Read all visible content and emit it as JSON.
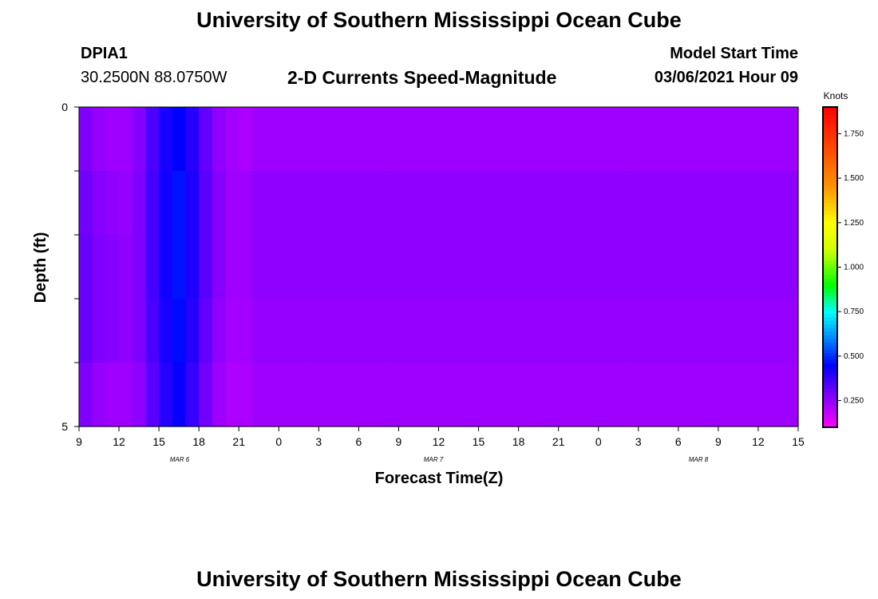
{
  "header": {
    "title": "University of Southern Mississippi Ocean Cube",
    "station": "DPIA1",
    "coords": "30.2500N 88.0750W",
    "subtitle": "2-D Currents Speed-Magnitude",
    "model_label": "Model Start Time",
    "model_time": "03/06/2021 Hour 09"
  },
  "footer": {
    "title": "University of Southern Mississippi Ocean Cube"
  },
  "chart_data": {
    "type": "heatmap",
    "title": "2-D Currents Speed-Magnitude",
    "xlabel": "Forecast Time(Z)",
    "ylabel": "Depth (ft)",
    "colorbar_label": "Knots",
    "x_tick_labels": [
      "9",
      "12",
      "15",
      "18",
      "21",
      "0",
      "3",
      "6",
      "9",
      "12",
      "15",
      "18",
      "21",
      "0",
      "3",
      "6",
      "9",
      "12",
      "15"
    ],
    "date_labels": [
      "MAR 6",
      "MAR 7",
      "MAR 8"
    ],
    "y_tick_labels": [
      "0",
      "5"
    ],
    "ylim": [
      0,
      5
    ],
    "colorbar_ticks": [
      "0.250",
      "0.500",
      "0.750",
      "1.000",
      "1.250",
      "1.500",
      "1.750"
    ],
    "colorbar_range": [
      0.1,
      1.9
    ],
    "columns_per_hour": 1,
    "depth_rows": 5,
    "values": [
      [
        0.28,
        0.25,
        0.24,
        0.24,
        0.27,
        0.35,
        0.42,
        0.45,
        0.4,
        0.32,
        0.26,
        0.23,
        0.22,
        0.24,
        0.24,
        0.24,
        0.24,
        0.24,
        0.24,
        0.24,
        0.24,
        0.24,
        0.24,
        0.24,
        0.24,
        0.24,
        0.24,
        0.24,
        0.24,
        0.24,
        0.24,
        0.24,
        0.24,
        0.24,
        0.24,
        0.24,
        0.24,
        0.24,
        0.24,
        0.24,
        0.24,
        0.24,
        0.24,
        0.24,
        0.24,
        0.24,
        0.24,
        0.24,
        0.24,
        0.24,
        0.24,
        0.24,
        0.24,
        0.24
      ],
      [
        0.3,
        0.27,
        0.26,
        0.25,
        0.28,
        0.36,
        0.43,
        0.47,
        0.41,
        0.33,
        0.27,
        0.24,
        0.24,
        0.26,
        0.26,
        0.26,
        0.26,
        0.26,
        0.26,
        0.26,
        0.26,
        0.26,
        0.26,
        0.26,
        0.26,
        0.26,
        0.26,
        0.26,
        0.26,
        0.26,
        0.26,
        0.26,
        0.26,
        0.26,
        0.26,
        0.26,
        0.26,
        0.26,
        0.26,
        0.26,
        0.26,
        0.26,
        0.26,
        0.26,
        0.26,
        0.26,
        0.26,
        0.26,
        0.26,
        0.26,
        0.26,
        0.26,
        0.26,
        0.26
      ],
      [
        0.31,
        0.28,
        0.27,
        0.26,
        0.28,
        0.36,
        0.43,
        0.47,
        0.41,
        0.33,
        0.27,
        0.24,
        0.24,
        0.26,
        0.26,
        0.26,
        0.26,
        0.26,
        0.26,
        0.26,
        0.26,
        0.26,
        0.26,
        0.26,
        0.26,
        0.26,
        0.26,
        0.26,
        0.26,
        0.26,
        0.26,
        0.26,
        0.26,
        0.26,
        0.26,
        0.26,
        0.26,
        0.26,
        0.26,
        0.26,
        0.26,
        0.26,
        0.26,
        0.26,
        0.26,
        0.26,
        0.26,
        0.26,
        0.26,
        0.26,
        0.26,
        0.26,
        0.26,
        0.26
      ],
      [
        0.31,
        0.28,
        0.27,
        0.26,
        0.28,
        0.35,
        0.42,
        0.46,
        0.4,
        0.32,
        0.26,
        0.23,
        0.23,
        0.25,
        0.25,
        0.25,
        0.25,
        0.25,
        0.25,
        0.25,
        0.25,
        0.25,
        0.25,
        0.25,
        0.25,
        0.25,
        0.25,
        0.25,
        0.25,
        0.25,
        0.25,
        0.25,
        0.25,
        0.25,
        0.25,
        0.25,
        0.25,
        0.25,
        0.25,
        0.25,
        0.25,
        0.25,
        0.25,
        0.25,
        0.25,
        0.25,
        0.25,
        0.25,
        0.25,
        0.25,
        0.25,
        0.25,
        0.25,
        0.25
      ],
      [
        0.28,
        0.25,
        0.24,
        0.24,
        0.26,
        0.33,
        0.4,
        0.44,
        0.38,
        0.3,
        0.24,
        0.22,
        0.22,
        0.24,
        0.24,
        0.24,
        0.24,
        0.24,
        0.24,
        0.24,
        0.24,
        0.24,
        0.24,
        0.24,
        0.24,
        0.24,
        0.24,
        0.24,
        0.24,
        0.24,
        0.24,
        0.24,
        0.24,
        0.24,
        0.24,
        0.24,
        0.24,
        0.24,
        0.24,
        0.24,
        0.24,
        0.24,
        0.24,
        0.24,
        0.24,
        0.24,
        0.24,
        0.24,
        0.24,
        0.24,
        0.24,
        0.24,
        0.24,
        0.24
      ]
    ]
  }
}
